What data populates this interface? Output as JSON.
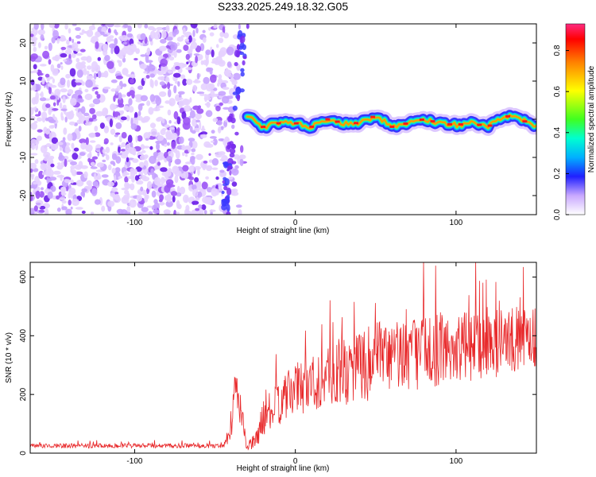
{
  "title": "S233.2025.249.18.32.G05",
  "colors": {
    "signal": "#e8282a",
    "axis": "#000000",
    "noise": "#8b3df0"
  },
  "chart_data": [
    {
      "type": "heatmap",
      "title": "S233.2025.249.18.32.G05",
      "xlabel": "Height of straight line (km)",
      "ylabel": "Frequency (Hz)",
      "xlim": [
        -165,
        150
      ],
      "ylim": [
        -25,
        25
      ],
      "xticks": [
        -100,
        0,
        100
      ],
      "xtick_labels": [
        "-100",
        "0",
        "100"
      ],
      "yticks": [
        -20,
        -10,
        0,
        10,
        20
      ],
      "ytick_labels": [
        "-20",
        "-10",
        "0",
        "10",
        "20"
      ],
      "colorbar": {
        "label": "Normalized spectral amplitude",
        "range": [
          0,
          0.93
        ],
        "ticks": [
          0,
          0.2,
          0.4,
          0.6,
          0.8
        ],
        "tick_labels": [
          "0.0",
          "0.2",
          "0.4",
          "0.6",
          "0.8"
        ]
      },
      "ridge": {
        "x": [
          -30,
          -20,
          -10,
          0,
          10,
          20,
          30,
          40,
          50,
          60,
          70,
          80,
          90,
          100,
          110,
          120,
          130,
          140,
          150
        ],
        "freq": [
          1,
          -2,
          -1,
          -1,
          -2,
          0,
          -1,
          -1,
          1,
          -2,
          -1,
          0,
          -1,
          -1.5,
          -1,
          -2,
          1,
          0,
          -2
        ]
      }
    },
    {
      "type": "line",
      "xlabel": "Height of straight line (km)",
      "ylabel": "SNR (10 * v/v)",
      "xlim": [
        -165,
        150
      ],
      "ylim": [
        0,
        650
      ],
      "xticks": [
        -100,
        0,
        100
      ],
      "xtick_labels": [
        "-100",
        "0",
        "100"
      ],
      "yticks": [
        0,
        200,
        400,
        600
      ],
      "ytick_labels": [
        "0",
        "200",
        "400",
        "600"
      ],
      "envelope": {
        "x": [
          -165,
          -45,
          -40,
          -38,
          -34,
          -30,
          -25,
          -20,
          0,
          20,
          40,
          60,
          80,
          100,
          120,
          140,
          150
        ],
        "mean": [
          25,
          25,
          80,
          220,
          150,
          20,
          40,
          120,
          220,
          260,
          300,
          330,
          350,
          360,
          370,
          390,
          400
        ],
        "spread": [
          8,
          8,
          40,
          70,
          60,
          15,
          30,
          60,
          90,
          110,
          130,
          130,
          130,
          120,
          120,
          110,
          110
        ]
      }
    }
  ]
}
